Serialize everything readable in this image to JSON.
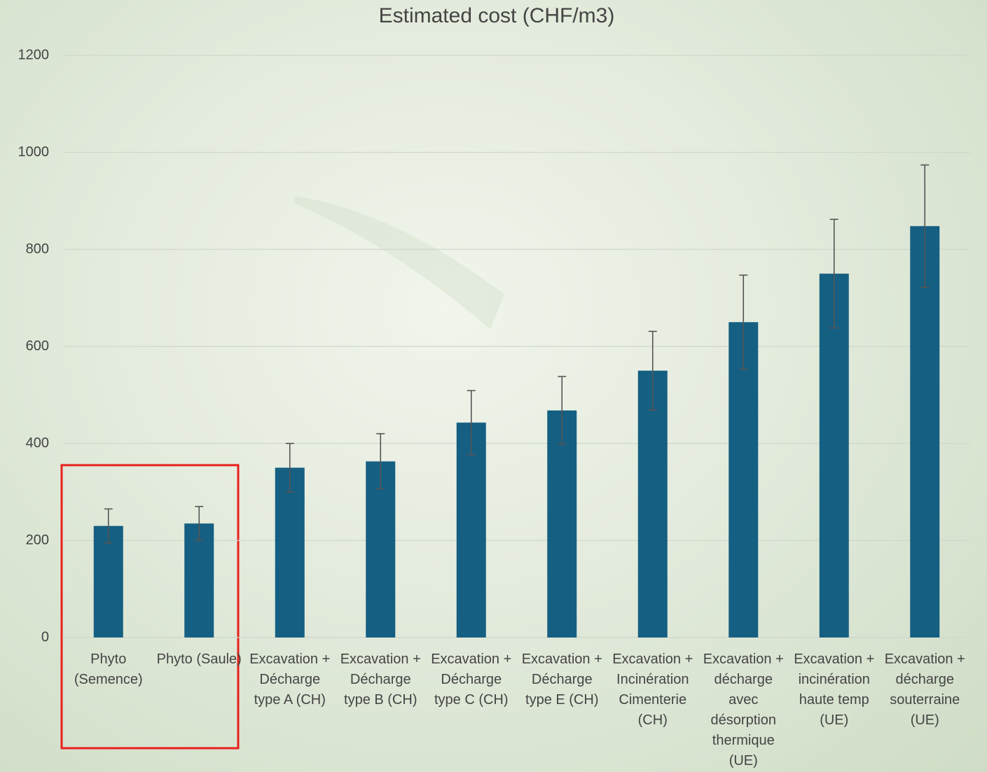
{
  "chart_data": {
    "type": "bar",
    "title": "Estimated cost (CHF/m3)",
    "categories": [
      "Phyto (Semence)",
      "Phyto (Saule)",
      "Excavation + Décharge type A (CH)",
      "Excavation + Décharge type B (CH)",
      "Excavation + Décharge type C (CH)",
      "Excavation + Décharge type E (CH)",
      "Excavation + Incinération Cimenterie (CH)",
      "Excavation + décharge avec désorption thermique (UE)",
      "Excavation + incinération haute temp (UE)",
      "Excavation + décharge souterraine (UE)"
    ],
    "values": [
      230,
      235,
      350,
      363,
      443,
      468,
      550,
      650,
      750,
      848
    ],
    "errors": [
      35,
      35,
      50,
      57,
      66,
      70,
      81,
      97,
      112,
      126
    ],
    "color": "#155f82",
    "ylim": [
      0,
      1200
    ],
    "yticks": [
      0,
      200,
      400,
      600,
      800,
      1000,
      1200
    ],
    "grid": true
  }
}
